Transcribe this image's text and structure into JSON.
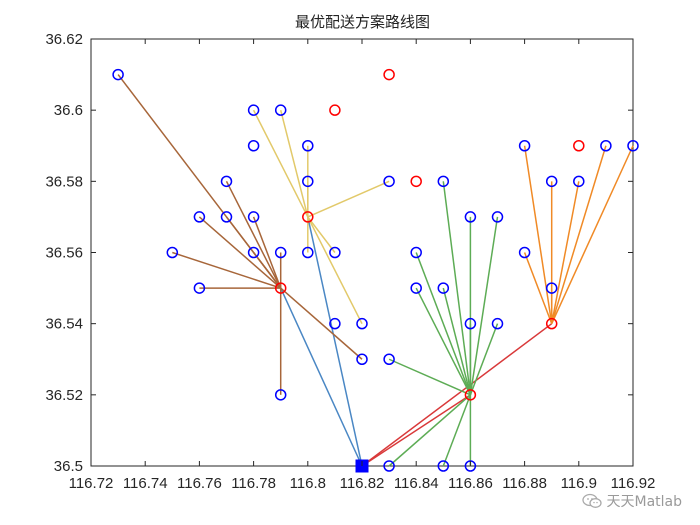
{
  "chart_data": {
    "type": "scatter",
    "title": "最优配送方案路线图",
    "xlim": [
      116.72,
      116.92
    ],
    "ylim": [
      36.5,
      36.62
    ],
    "xticks": [
      116.72,
      116.74,
      116.76,
      116.78,
      116.8,
      116.82,
      116.84,
      116.86,
      116.88,
      116.9,
      116.92
    ],
    "xtick_labels": [
      "116.72",
      "116.74",
      "116.76",
      "116.78",
      "116.8",
      "116.82",
      "116.84",
      "116.86",
      "116.88",
      "116.9",
      "116.92"
    ],
    "yticks": [
      36.5,
      36.52,
      36.54,
      36.56,
      36.58,
      36.6,
      36.62
    ],
    "ytick_labels": [
      "36.5",
      "36.52",
      "36.54",
      "36.56",
      "36.58",
      "36.6",
      "36.62"
    ],
    "grid": false,
    "depot": {
      "x": 116.82,
      "y": 36.5,
      "color": "#0000ff",
      "marker": "square"
    },
    "customer_color": "#0000ff",
    "candidate_color": "#ff0000",
    "customers": [
      [
        116.73,
        36.61
      ],
      [
        116.78,
        36.6
      ],
      [
        116.79,
        36.6
      ],
      [
        116.78,
        36.59
      ],
      [
        116.8,
        36.59
      ],
      [
        116.77,
        36.58
      ],
      [
        116.8,
        36.58
      ],
      [
        116.83,
        36.58
      ],
      [
        116.76,
        36.57
      ],
      [
        116.77,
        36.57
      ],
      [
        116.78,
        36.57
      ],
      [
        116.75,
        36.56
      ],
      [
        116.78,
        36.56
      ],
      [
        116.79,
        36.56
      ],
      [
        116.8,
        36.56
      ],
      [
        116.81,
        36.56
      ],
      [
        116.76,
        36.55
      ],
      [
        116.79,
        36.52
      ],
      [
        116.81,
        36.54
      ],
      [
        116.82,
        36.54
      ],
      [
        116.82,
        36.53
      ],
      [
        116.83,
        36.53
      ],
      [
        116.84,
        36.56
      ],
      [
        116.85,
        36.58
      ],
      [
        116.86,
        36.57
      ],
      [
        116.87,
        36.57
      ],
      [
        116.84,
        36.55
      ],
      [
        116.85,
        36.55
      ],
      [
        116.86,
        36.54
      ],
      [
        116.87,
        36.54
      ],
      [
        116.83,
        36.5
      ],
      [
        116.85,
        36.5
      ],
      [
        116.86,
        36.5
      ],
      [
        116.88,
        36.59
      ],
      [
        116.89,
        36.58
      ],
      [
        116.9,
        36.58
      ],
      [
        116.91,
        36.59
      ],
      [
        116.92,
        36.59
      ],
      [
        116.88,
        36.56
      ],
      [
        116.89,
        36.55
      ]
    ],
    "candidates": [
      [
        116.81,
        36.6
      ],
      [
        116.83,
        36.61
      ],
      [
        116.84,
        36.58
      ],
      [
        116.9,
        36.59
      ],
      [
        116.8,
        36.57
      ],
      [
        116.79,
        36.55
      ],
      [
        116.86,
        36.52
      ],
      [
        116.89,
        36.54
      ]
    ],
    "routes": [
      {
        "color": "#4a87c4",
        "from": [
          116.82,
          36.5
        ],
        "to": [
          [
            116.8,
            36.57
          ],
          [
            116.79,
            36.55
          ]
        ]
      },
      {
        "color": "#d9393a",
        "from": [
          116.82,
          36.5
        ],
        "to": [
          [
            116.86,
            36.52
          ],
          [
            116.89,
            36.54
          ]
        ]
      },
      {
        "color": "#a7663a",
        "from": [
          116.79,
          36.55
        ],
        "to": [
          [
            116.73,
            36.61
          ],
          [
            116.77,
            36.58
          ],
          [
            116.76,
            36.57
          ],
          [
            116.77,
            36.57
          ],
          [
            116.78,
            36.57
          ],
          [
            116.75,
            36.56
          ],
          [
            116.78,
            36.56
          ],
          [
            116.79,
            36.56
          ],
          [
            116.76,
            36.55
          ],
          [
            116.79,
            36.52
          ],
          [
            116.82,
            36.53
          ]
        ]
      },
      {
        "color": "#e2c96a",
        "from": [
          116.8,
          36.57
        ],
        "to": [
          [
            116.78,
            36.6
          ],
          [
            116.79,
            36.6
          ],
          [
            116.8,
            36.59
          ],
          [
            116.8,
            36.58
          ],
          [
            116.83,
            36.58
          ],
          [
            116.8,
            36.56
          ],
          [
            116.81,
            36.56
          ],
          [
            116.82,
            36.54
          ]
        ]
      },
      {
        "color": "#5dac55",
        "from": [
          116.86,
          36.52
        ],
        "to": [
          [
            116.85,
            36.58
          ],
          [
            116.84,
            36.56
          ],
          [
            116.86,
            36.57
          ],
          [
            116.87,
            36.57
          ],
          [
            116.84,
            36.55
          ],
          [
            116.85,
            36.55
          ],
          [
            116.86,
            36.54
          ],
          [
            116.87,
            36.54
          ],
          [
            116.83,
            36.53
          ],
          [
            116.83,
            36.5
          ],
          [
            116.85,
            36.5
          ],
          [
            116.86,
            36.5
          ]
        ]
      },
      {
        "color": "#f08a26",
        "from": [
          116.89,
          36.54
        ],
        "to": [
          [
            116.88,
            36.59
          ],
          [
            116.89,
            36.58
          ],
          [
            116.9,
            36.58
          ],
          [
            116.91,
            36.59
          ],
          [
            116.92,
            36.59
          ],
          [
            116.88,
            36.56
          ],
          [
            116.89,
            36.55
          ]
        ]
      }
    ]
  },
  "watermark": {
    "text": "天天Matlab",
    "icon": "wechat-icon"
  }
}
